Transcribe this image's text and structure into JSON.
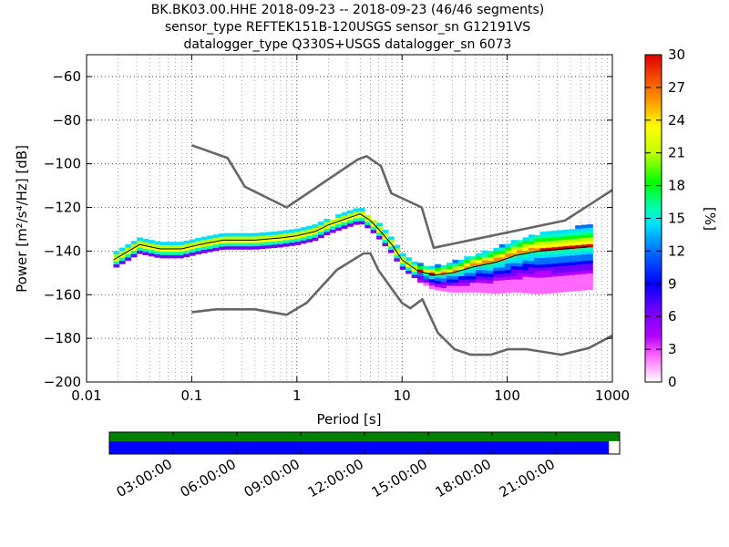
{
  "header": {
    "line1": "BK.BK03.00.HHE   2018-09-23 -- 2018-09-23  (46/46 segments)",
    "line2": "sensor_type REFTEK151B-120USGS sensor_sn G12191VS",
    "line3": "datalogger_type Q330S+USGS datalogger_sn 6073"
  },
  "chart_data": {
    "type": "heatmap",
    "title": "BK.BK03.00.HHE   2018-09-23 -- 2018-09-23  (46/46 segments)",
    "xlabel": "Period [s]",
    "ylabel": "Power [m²/s⁴/Hz] [dB]",
    "x_scale": "log",
    "xlim": [
      0.01,
      1000
    ],
    "ylim": [
      -200,
      -50
    ],
    "x_ticks": [
      0.01,
      0.1,
      1,
      10,
      100,
      1000
    ],
    "x_tick_labels": [
      "0.01",
      "0.1",
      "1",
      "10",
      "100",
      "1000"
    ],
    "y_ticks": [
      -200,
      -180,
      -160,
      -140,
      -120,
      -100,
      -80,
      -60
    ],
    "y_tick_labels": [
      "−200",
      "−180",
      "−160",
      "−140",
      "−120",
      "−100",
      "−80",
      "−60"
    ],
    "grid": true,
    "colorbar": {
      "label": "[%]",
      "range": [
        0,
        30
      ],
      "ticks": [
        0,
        3,
        6,
        9,
        12,
        15,
        18,
        21,
        24,
        27,
        30
      ]
    },
    "series": [
      {
        "role": "noise-model-high",
        "x": [
          0.1,
          0.22,
          0.32,
          0.8,
          3.8,
          4.6,
          6.3,
          7.9,
          15.4,
          20,
          354,
          1000
        ],
        "y": [
          -91.5,
          -97.4,
          -110.5,
          -120,
          -98,
          -96.5,
          -101,
          -113.5,
          -120,
          -138.5,
          -126,
          -112
        ]
      },
      {
        "role": "noise-model-low",
        "x": [
          0.1,
          0.17,
          0.4,
          0.8,
          1.24,
          2.4,
          4.3,
          5,
          6,
          10,
          12,
          15.6,
          21.9,
          31.6,
          45,
          70,
          101,
          154,
          328,
          600,
          1000
        ],
        "y": [
          -168,
          -166.7,
          -166.7,
          -169.2,
          -163.7,
          -148.6,
          -141.1,
          -141.1,
          -149,
          -163.8,
          -166.2,
          -162.1,
          -177.5,
          -185,
          -187.5,
          -187.5,
          -185,
          -185,
          -187.5,
          -184.4,
          -178.7
        ]
      },
      {
        "role": "mean",
        "x": [
          0.018,
          0.025,
          0.032,
          0.05,
          0.08,
          0.12,
          0.2,
          0.4,
          0.7,
          1,
          1.5,
          2,
          3,
          4,
          5,
          6,
          8,
          10,
          14,
          20,
          30,
          50,
          80,
          120,
          200,
          350,
          600
        ],
        "y": [
          -144,
          -140,
          -137,
          -139,
          -139,
          -137,
          -135,
          -135,
          -134,
          -133,
          -131,
          -128,
          -125,
          -123,
          -126,
          -130,
          -137,
          -144,
          -149,
          -151,
          -150,
          -147,
          -145,
          -142,
          -140,
          -139,
          -138
        ]
      }
    ]
  },
  "timeline": {
    "labels": [
      "03:00:00",
      "06:00:00",
      "09:00:00",
      "12:00:00",
      "15:00:00",
      "18:00:00",
      "21:00:00"
    ],
    "data_coverage_fraction": 0.979,
    "data_color": "#0000ff",
    "gap_color": "#ffffff",
    "segment_color": "#008000"
  }
}
